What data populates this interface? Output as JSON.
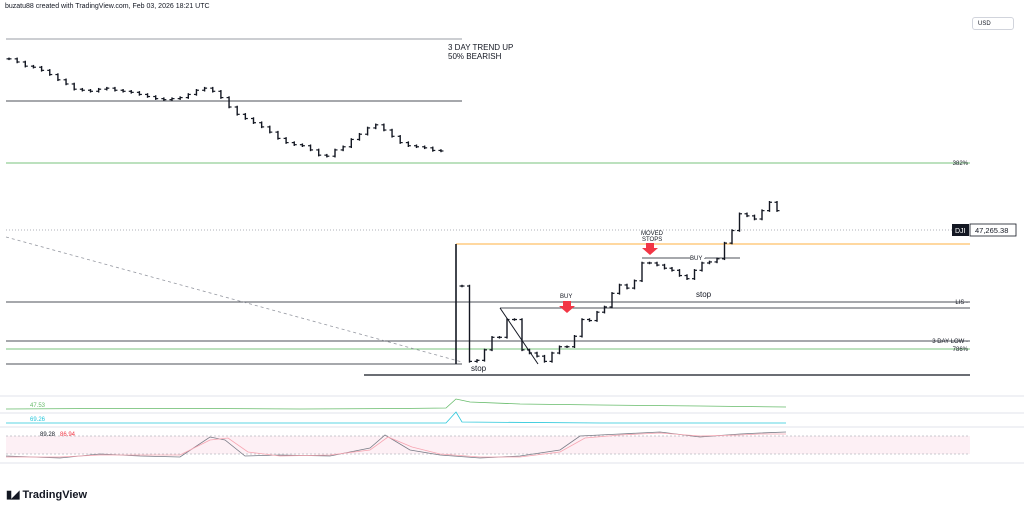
{
  "header": {
    "text": "buzatu88 created with TradingView.com, Feb 03, 2026 18:21 UTC"
  },
  "currency_button": {
    "label": "USD"
  },
  "brand": {
    "name": "TradingView"
  },
  "colors": {
    "candle": "#131722",
    "level_green": "#4caf50",
    "level_gray": "#787b86",
    "level_orange": "#ff9800",
    "arrow_red": "#f23645",
    "ind1": "#66bb6a",
    "ind2": "#26c6da",
    "stoch_k": "#787b86",
    "stoch_d": "#f7a5b1",
    "price_tag_bg": "#131722"
  },
  "annotations": {
    "trend": [
      "3 DAY TREND UP",
      "50% BEARISH"
    ],
    "moved_stops": [
      "MOVED",
      "STOPS"
    ],
    "buy1": "BUY",
    "buy2": "BUY -",
    "stop1": "stop",
    "stop2": "stop"
  },
  "chart_data": {
    "type": "line",
    "symbol": "DJI",
    "last_price": "47,265.38",
    "levels": [
      {
        "label": "382%",
        "y": 47700
      },
      {
        "label": "LIS -",
        "y": 46300
      },
      {
        "label": "3 DAY LOW -",
        "y": 45970
      },
      {
        "label": "786%",
        "y": 45900
      }
    ],
    "bars_segment1": [
      48720,
      48690,
      48650,
      48640,
      48610,
      48570,
      48520,
      48480,
      48430,
      48420,
      48410,
      48430,
      48440,
      48420,
      48410,
      48400,
      48380,
      48360,
      48340,
      48330,
      48340,
      48350,
      48380,
      48420,
      48440,
      48410,
      48350,
      48260,
      48190,
      48150,
      48110,
      48070,
      48020,
      47960,
      47920,
      47900,
      47890,
      47850,
      47800,
      47790,
      47850,
      47880,
      47950,
      48000,
      48060,
      48090,
      48040,
      47980,
      47920,
      47890,
      47880,
      47870,
      47845,
      47840
    ],
    "bars_segment2": [
      46550,
      45830,
      45840,
      45940,
      46060,
      46060,
      46230,
      46230,
      45940,
      45910,
      45880,
      45830,
      45910,
      45970,
      45970,
      46070,
      46230,
      46220,
      46300,
      46350,
      46480,
      46560,
      46530,
      46600,
      46770,
      46770,
      46750,
      46720,
      46700,
      46650,
      46620,
      46700,
      46770,
      46780,
      46810,
      46960,
      47080,
      47240,
      47220,
      47190,
      47270,
      47350,
      47270
    ]
  },
  "indicators": {
    "ind1_value": "47.53",
    "ind2_value": "69.26",
    "stoch_k_value": "89.28",
    "stoch_d_value": "86.94"
  }
}
